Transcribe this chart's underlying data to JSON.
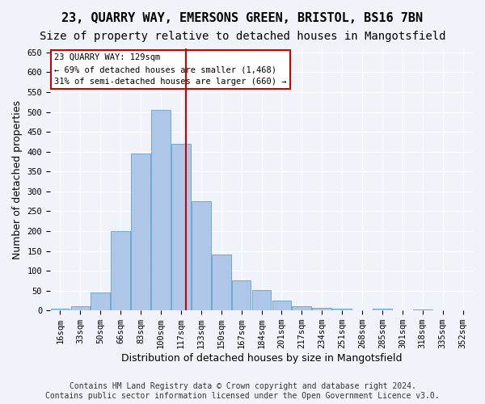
{
  "title1": "23, QUARRY WAY, EMERSONS GREEN, BRISTOL, BS16 7BN",
  "title2": "Size of property relative to detached houses in Mangotsfield",
  "xlabel": "Distribution of detached houses by size in Mangotsfield",
  "ylabel": "Number of detached properties",
  "bar_labels": [
    "16sqm",
    "33sqm",
    "50sqm",
    "66sqm",
    "83sqm",
    "100sqm",
    "117sqm",
    "133sqm",
    "150sqm",
    "167sqm",
    "184sqm",
    "201sqm",
    "217sqm",
    "234sqm",
    "251sqm",
    "268sqm",
    "285sqm",
    "301sqm",
    "318sqm",
    "335sqm",
    "352sqm"
  ],
  "bar_values": [
    5,
    10,
    45,
    200,
    395,
    505,
    420,
    275,
    140,
    75,
    52,
    25,
    10,
    7,
    5,
    0,
    5,
    0,
    3,
    0,
    0
  ],
  "bar_color": "#aec6e8",
  "bar_edge_color": "#6fa8d6",
  "property_label": "23 QUARRY WAY: 129sqm",
  "annotation_line1": "← 69% of detached houses are smaller (1,468)",
  "annotation_line2": "31% of semi-detached houses are larger (660) →",
  "vline_color": "#cc0000",
  "annotation_box_color": "#ffffff",
  "annotation_box_edge": "#cc0000",
  "ylim": [
    0,
    660
  ],
  "yticks": [
    0,
    50,
    100,
    150,
    200,
    250,
    300,
    350,
    400,
    450,
    500,
    550,
    600,
    650
  ],
  "footer1": "Contains HM Land Registry data © Crown copyright and database right 2024.",
  "footer2": "Contains public sector information licensed under the Open Government Licence v3.0.",
  "bg_color": "#f0f4fa",
  "grid_color": "#ffffff",
  "title1_fontsize": 11,
  "title2_fontsize": 10,
  "xlabel_fontsize": 9,
  "ylabel_fontsize": 9,
  "tick_fontsize": 7.5,
  "footer_fontsize": 7,
  "vline_x": 6.25
}
